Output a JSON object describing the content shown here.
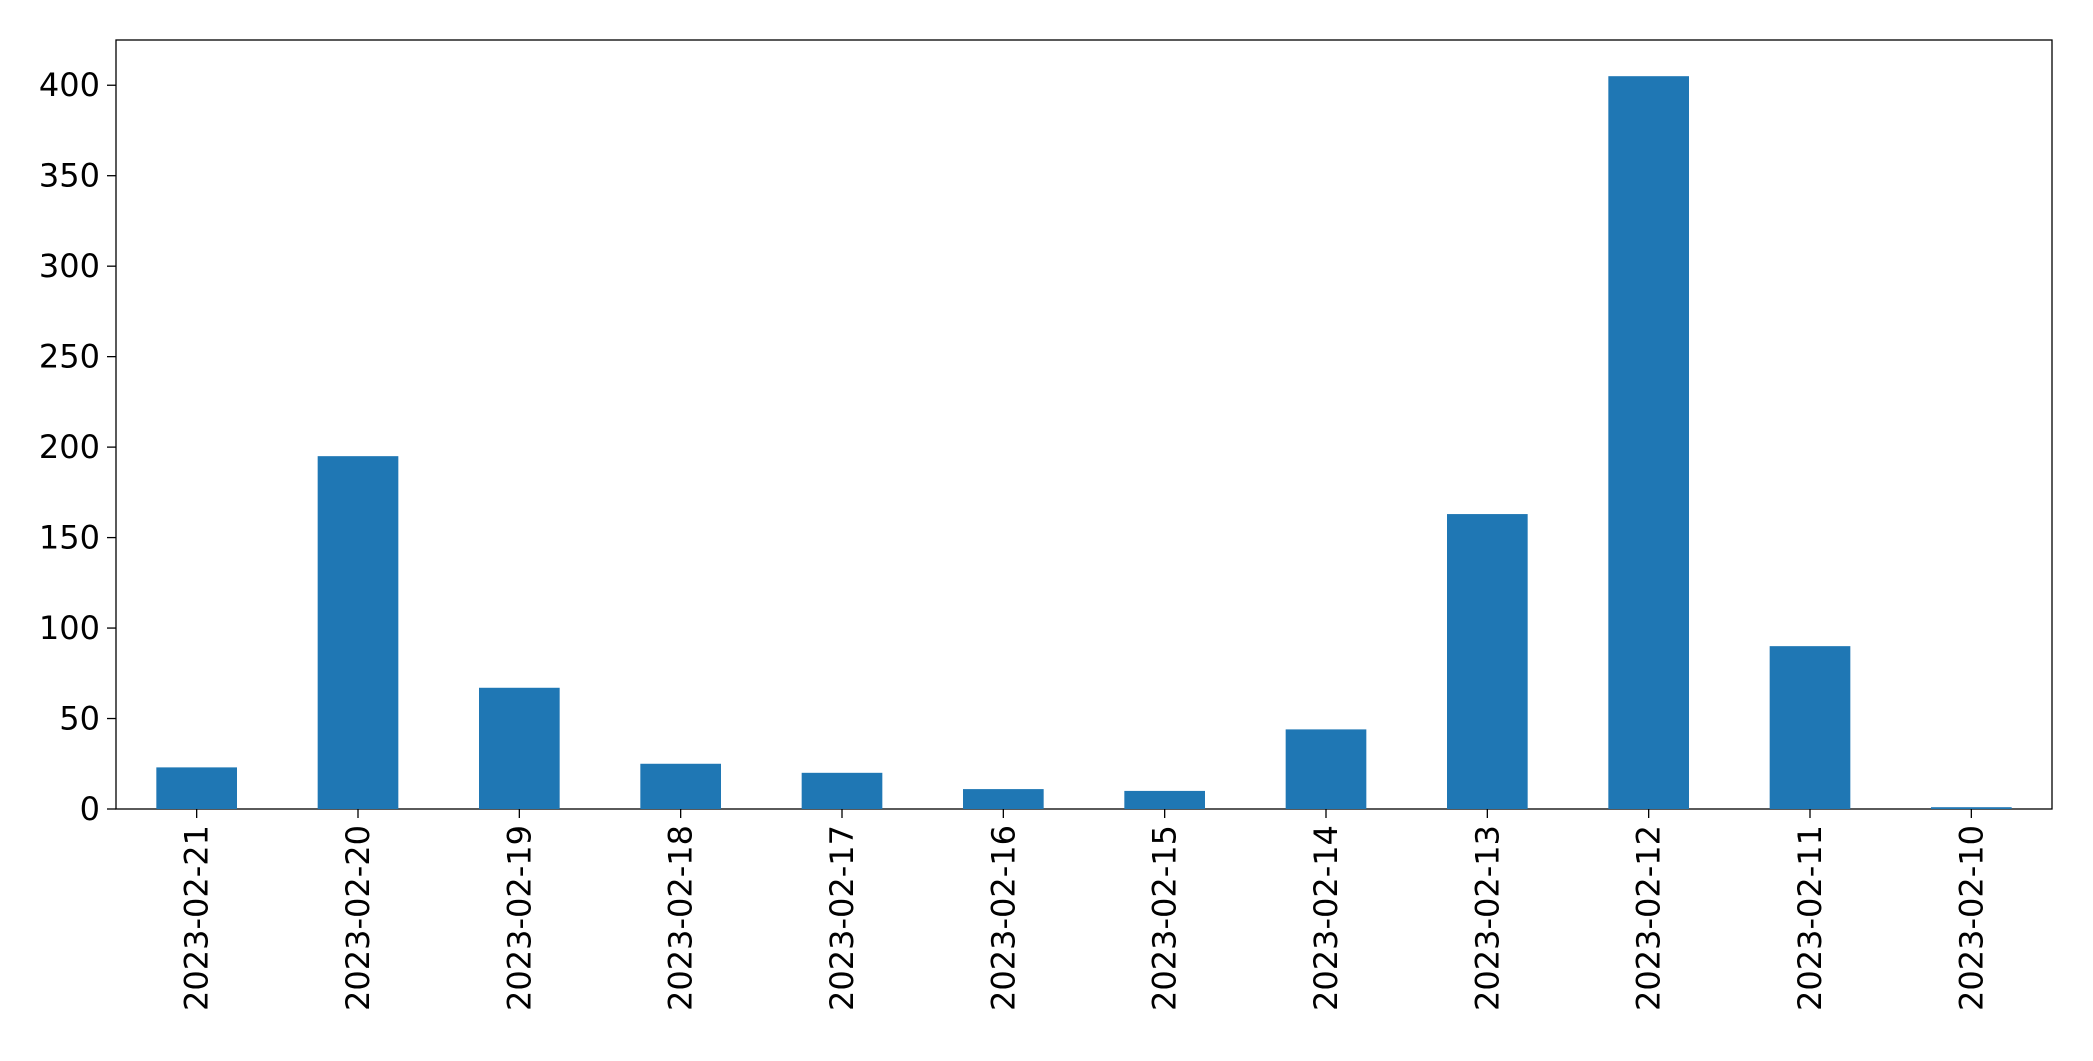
{
  "chart_data": {
    "type": "bar",
    "categories": [
      "2023-02-21",
      "2023-02-20",
      "2023-02-19",
      "2023-02-18",
      "2023-02-17",
      "2023-02-16",
      "2023-02-15",
      "2023-02-14",
      "2023-02-13",
      "2023-02-12",
      "2023-02-11",
      "2023-02-10"
    ],
    "values": [
      23,
      195,
      67,
      25,
      20,
      11,
      10,
      44,
      163,
      405,
      90,
      1
    ],
    "color": "#1f77b4",
    "ylim": [
      0,
      425
    ],
    "yticks": [
      0,
      50,
      100,
      150,
      200,
      250,
      300,
      350,
      400
    ],
    "grid": false
  }
}
